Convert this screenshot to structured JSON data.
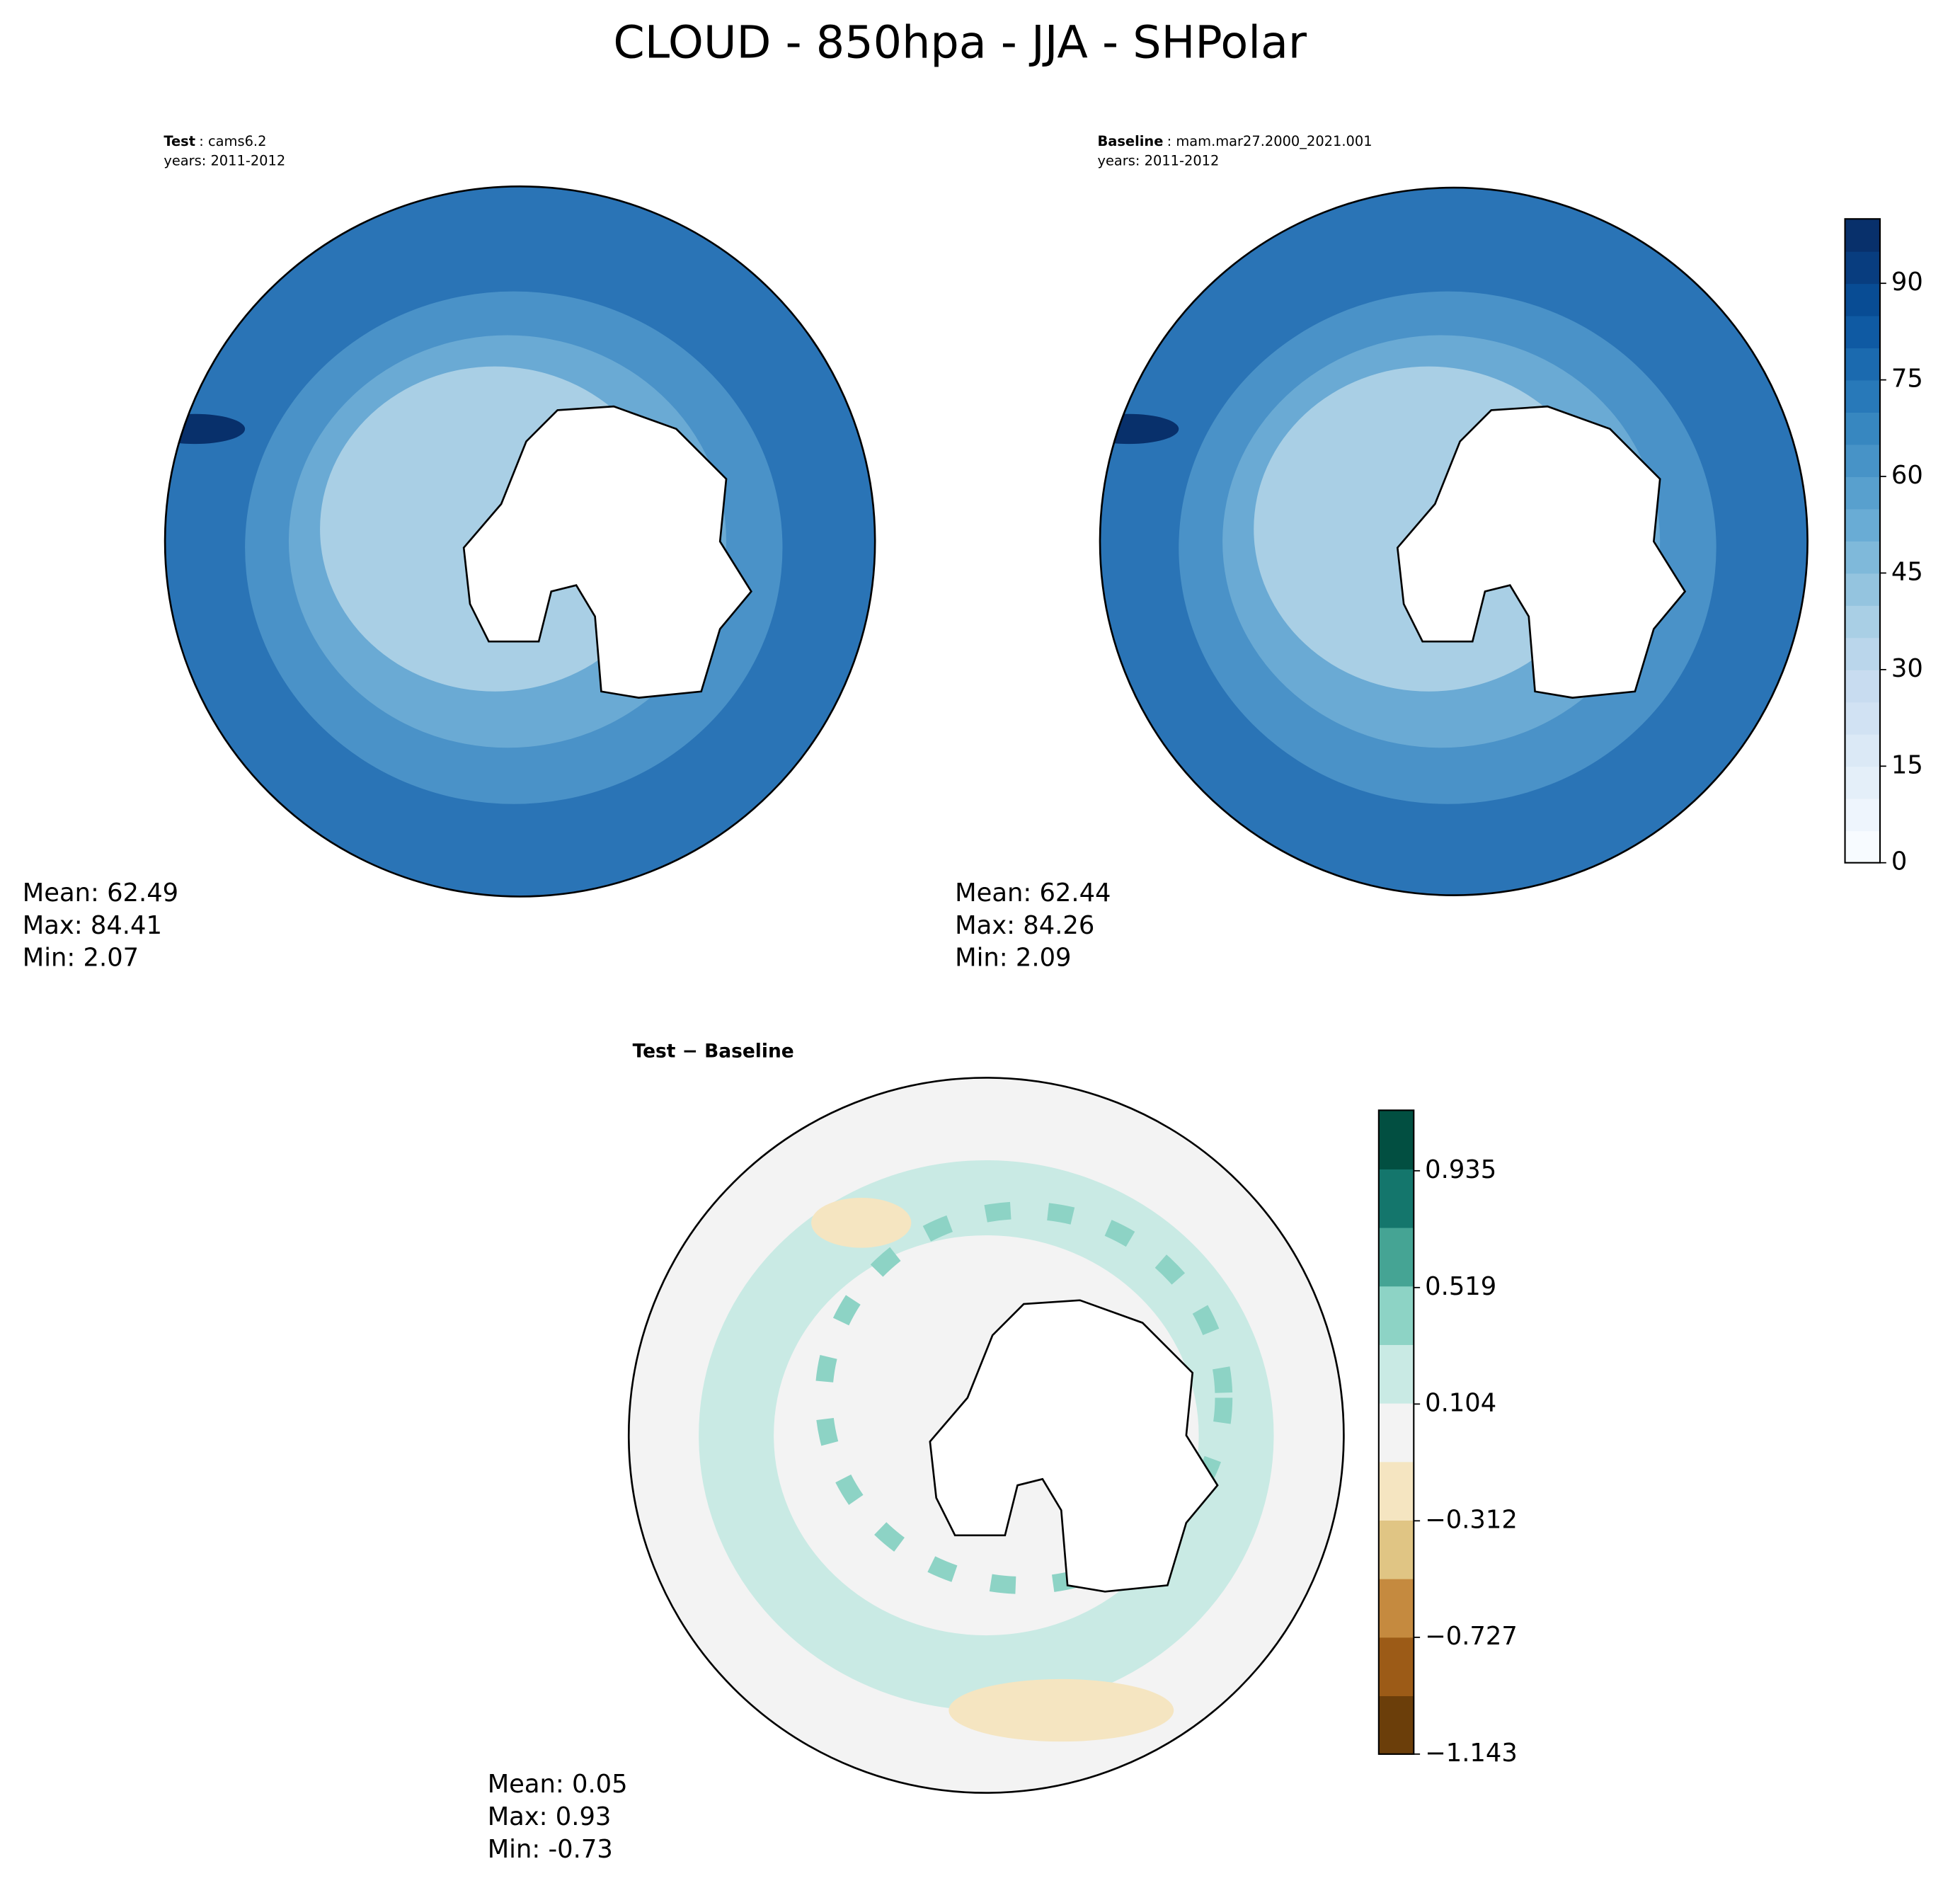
{
  "title": "CLOUD - 850hpa - JJA - SHPolar",
  "panels": [
    {
      "label": "Test",
      "case": ": cams6.2",
      "years": "years: 2011-2012",
      "stats": [
        "Mean: 62.49",
        "Max: 84.41",
        "Min:  2.07"
      ]
    },
    {
      "label": "Baseline",
      "case": ": mam.mar27.2000_2021.001",
      "years": "years: 2011-2012",
      "stats": [
        "Mean: 62.44",
        "Max: 84.26",
        "Min:  2.09"
      ]
    },
    {
      "label": "Test − Baseline",
      "stats": [
        "Mean:  0.05",
        "Max:  0.93",
        "Min: -0.73"
      ]
    }
  ],
  "colorbars": [
    {
      "lim": [
        0,
        100
      ],
      "ticks": [
        0,
        15,
        30,
        45,
        60,
        75,
        90
      ],
      "colors": [
        "#f7fbff",
        "#eef5fd",
        "#e4eff9",
        "#dbe9f6",
        "#d1e2f3",
        "#c8dcf0",
        "#bad6eb",
        "#a9cfe5",
        "#94c4df",
        "#7fb9da",
        "#69acd5",
        "#58a0ce",
        "#4793c7",
        "#3787c0",
        "#2879b9",
        "#1b6aaf",
        "#0f5aa3",
        "#084c94",
        "#083d7f",
        "#08306b"
      ]
    },
    {
      "lim": [
        -1.143,
        1.1505
      ],
      "ticks": [
        {
          "value": -1.143,
          "label": "−1.143"
        },
        {
          "value": -0.727,
          "label": "−0.727"
        },
        {
          "value": -0.312,
          "label": "−0.312"
        },
        0.104,
        0.519,
        0.935
      ],
      "colors": [
        "#6b3e0a",
        "#9c5b17",
        "#c58a3f",
        "#e0c584",
        "#f5e5c1",
        "#f3f3f3",
        "#c9eae4",
        "#8dd3c5",
        "#45a494",
        "#14766c",
        "#024f41"
      ]
    }
  ]
}
